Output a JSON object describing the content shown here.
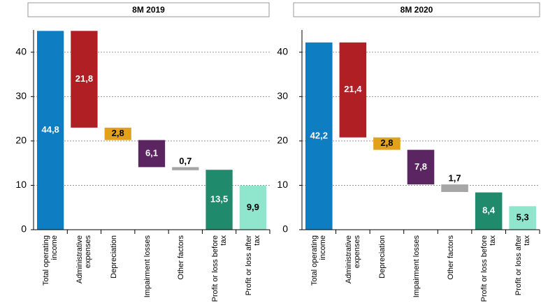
{
  "chart_data": [
    {
      "type": "waterfall",
      "title": "8M 2019",
      "categories": [
        "Total operating income",
        "Administrative expenses",
        "Depreciation",
        "Impairment losses",
        "Other factors",
        "Profit or loss before tax",
        "Profit or loss after tax"
      ],
      "values": [
        44.8,
        21.8,
        2.8,
        6.1,
        0.7,
        13.5,
        9.9
      ],
      "value_labels": [
        "44,8",
        "21,8",
        "2,8",
        "6,1",
        "0,7",
        "13,5",
        "9,9"
      ],
      "measure": [
        "absolute",
        "relative",
        "relative",
        "relative",
        "relative",
        "absolute",
        "absolute"
      ],
      "colors": [
        "#0f7dc2",
        "#b01f24",
        "#e3a01b",
        "#5b2562",
        "#a6a6a6",
        "#1f8a6c",
        "#8fe6cc"
      ],
      "ylim": [
        0,
        45
      ],
      "yticks": [
        0,
        10,
        20,
        30,
        40
      ],
      "grid": true
    },
    {
      "type": "waterfall",
      "title": "8M 2020",
      "categories": [
        "Total operating income",
        "Administrative expenses",
        "Depreciation",
        "Impairment losses",
        "Other factors",
        "Profit or loss before tax",
        "Profit or loss after tax"
      ],
      "values": [
        42.2,
        21.4,
        2.8,
        7.8,
        1.7,
        8.4,
        5.3
      ],
      "value_labels": [
        "42,2",
        "21,4",
        "2,8",
        "7,8",
        "1,7",
        "8,4",
        "5,3"
      ],
      "measure": [
        "absolute",
        "relative",
        "relative",
        "relative",
        "relative",
        "absolute",
        "absolute"
      ],
      "colors": [
        "#0f7dc2",
        "#b01f24",
        "#e3a01b",
        "#5b2562",
        "#a6a6a6",
        "#1f8a6c",
        "#8fe6cc"
      ],
      "ylim": [
        0,
        45
      ],
      "yticks": [
        0,
        10,
        20,
        30,
        40
      ],
      "grid": true
    }
  ]
}
